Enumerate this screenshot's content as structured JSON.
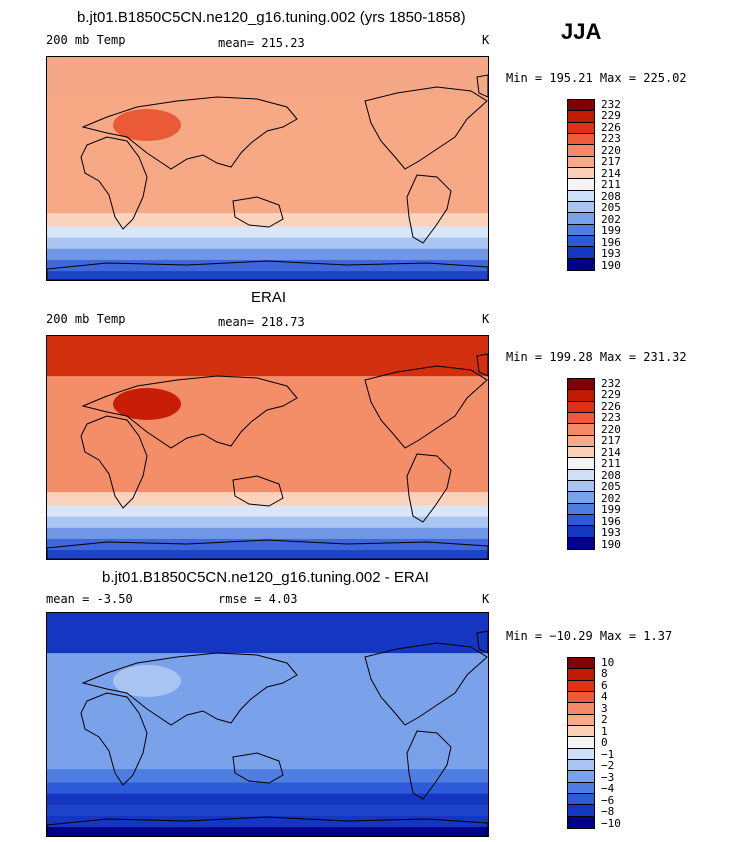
{
  "season": "JJA",
  "units": "K",
  "panels": [
    {
      "title": "b.jt01.B1850C5CN.ne120_g16.tuning.002 (yrs 1850-1858)",
      "left_label": "200 mb Temp",
      "stat_label": "mean= 215.23",
      "units": "K",
      "minmax": "Min = 195.21 Max = 225.02",
      "levels": [
        "232",
        "229",
        "226",
        "223",
        "220",
        "217",
        "214",
        "211",
        "208",
        "205",
        "202",
        "199",
        "196",
        "193",
        "190"
      ]
    },
    {
      "title": "ERAI",
      "left_label": "200 mb Temp",
      "stat_label": "mean= 218.73",
      "units": "K",
      "minmax": "Min = 199.28 Max = 231.32",
      "levels": [
        "232",
        "229",
        "226",
        "223",
        "220",
        "217",
        "214",
        "211",
        "208",
        "205",
        "202",
        "199",
        "196",
        "193",
        "190"
      ]
    },
    {
      "title": "b.jt01.B1850C5CN.ne120_g16.tuning.002 - ERAI",
      "left_label": "mean =   -3.50",
      "stat_label": "rmse =    4.03",
      "units": "K",
      "minmax": "Min = −10.29 Max =    1.37",
      "levels": [
        "10",
        "8",
        "6",
        "4",
        "3",
        "2",
        "1",
        "0",
        "−1",
        "−2",
        "−3",
        "−4",
        "−6",
        "−8",
        "−10"
      ]
    }
  ],
  "colors": {
    "colorbar": [
      "#800000",
      "#c01a00",
      "#e03018",
      "#ef5a3c",
      "#f48a68",
      "#f7aa88",
      "#fbd0b8",
      "#f4f4f4",
      "#cde0f8",
      "#a8c4f2",
      "#7aa2ea",
      "#4f7ee2",
      "#2d5ad8",
      "#1536c0",
      "#00008a"
    ],
    "model_map": {
      "north": "#f5a888",
      "belt": "#f7a884",
      "tibet": "#ea5a36",
      "south_mid": "#fbd3bd",
      "south1": "#d8e6f8",
      "south2": "#a9c5f2",
      "south3": "#6f97e6",
      "south4": "#3f67dc",
      "south5": "#1d43c8"
    },
    "erai_map": {
      "north": "#d2300e",
      "belt": "#f48e68",
      "tibet": "#c81e08",
      "south_mid": "#fbd3bd",
      "south1": "#d8e6f8",
      "south2": "#a9c5f2",
      "south3": "#6f97e6",
      "south4": "#3f67dc",
      "south5": "#1d43c8"
    },
    "diff_map": {
      "north": "#1536c0",
      "belt": "#7aa2ea",
      "tibet": "#a8c4f2",
      "south_mid": "#4f7ee2",
      "south1": "#2d5ad8",
      "south2": "#1536c0",
      "south3": "#1d43c8",
      "south4": "#1536c0",
      "south5": "#00008a"
    }
  }
}
